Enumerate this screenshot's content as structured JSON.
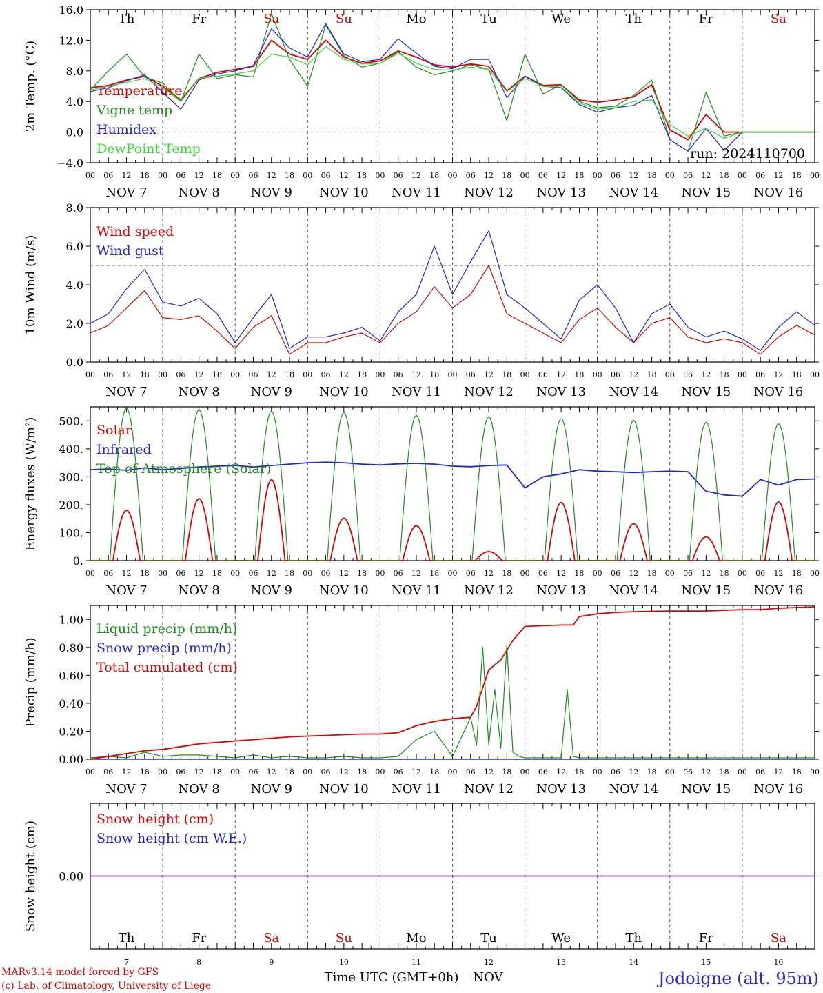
{
  "meta": {
    "run": "run: 2024110700",
    "footer_model": "MARv3.14 model forced by GFS",
    "footer_lab": "(c) Lab. of Climatology, University of Liege",
    "footer_axis": "Time UTC (GMT+0h)",
    "footer_month": "NOV",
    "location": "Jodoigne (alt. 95m)"
  },
  "timeline": {
    "days": [
      "7",
      "8",
      "9",
      "10",
      "11",
      "12",
      "13",
      "14",
      "15",
      "16"
    ],
    "month": "NOV",
    "weekdays": [
      "Th",
      "Fr",
      "Sa",
      "Su",
      "Mo",
      "Tu",
      "We",
      "Th",
      "Fr",
      "Sa"
    ],
    "weekend_flags": [
      false,
      false,
      true,
      true,
      false,
      false,
      false,
      false,
      false,
      true
    ],
    "hour_ticks": [
      "00",
      "06",
      "12",
      "18"
    ],
    "end_tick": "00"
  },
  "colors": {
    "red": "#e00000",
    "green": "#1f8a1f",
    "lightgreen": "#33dd33",
    "blue": "#2222dd",
    "purple": "#7a3aa0",
    "black": "#000000"
  },
  "chart_data": [
    {
      "type": "line",
      "ylabel": "2m Temp. (°C)",
      "ylim": [
        -4,
        16
      ],
      "yticks": [
        "16.0",
        "12.0",
        "8.0",
        "4.0",
        "0.0",
        "−4.0"
      ],
      "yticks_values": [
        16,
        12,
        8,
        4,
        0,
        -4
      ],
      "ref_lines": [
        0
      ],
      "x_units": "hours since NOV 7 00 UTC",
      "x_range": [
        0,
        240
      ],
      "series": [
        {
          "name": "Temperature",
          "color_key": "red",
          "x": [
            0,
            6,
            12,
            18,
            24,
            30,
            36,
            42,
            48,
            54,
            60,
            66,
            72,
            78,
            84,
            90,
            96,
            102,
            108,
            114,
            120,
            126,
            132,
            138,
            144,
            150,
            156,
            162,
            168,
            174,
            180,
            186,
            192,
            198,
            204,
            210,
            216,
            222,
            228,
            234,
            240
          ],
          "y": [
            5.8,
            6.1,
            6.8,
            7.3,
            6.0,
            4.2,
            7.0,
            7.8,
            8.2,
            8.6,
            12.0,
            10.2,
            9.5,
            12.0,
            9.8,
            9.0,
            9.3,
            10.6,
            9.8,
            8.8,
            8.5,
            8.9,
            8.6,
            5.4,
            7.3,
            6.1,
            6.2,
            4.2,
            3.9,
            4.2,
            4.6,
            6.2,
            0.3,
            -1.0,
            2.3,
            0.0,
            0,
            0,
            0,
            0,
            0
          ]
        },
        {
          "name": "Vigne temp",
          "color_key": "green",
          "x": [
            0,
            6,
            12,
            18,
            24,
            30,
            36,
            42,
            48,
            54,
            60,
            66,
            72,
            78,
            84,
            90,
            96,
            102,
            108,
            114,
            120,
            126,
            132,
            138,
            144,
            150,
            156,
            162,
            168,
            174,
            180,
            186,
            192,
            198,
            204,
            210,
            216,
            222,
            228,
            234,
            240
          ],
          "y": [
            5.5,
            8.0,
            10.2,
            7.2,
            6.4,
            4.0,
            10.2,
            7.0,
            7.5,
            7.2,
            15.5,
            9.5,
            6.0,
            14.0,
            10.0,
            8.5,
            9.0,
            10.5,
            8.5,
            7.5,
            8.0,
            8.8,
            8.2,
            1.5,
            10.2,
            5.0,
            6.2,
            4.0,
            3.2,
            3.4,
            4.8,
            6.8,
            -1.0,
            -2.5,
            5.2,
            -0.5,
            0,
            0,
            0,
            0,
            0
          ]
        },
        {
          "name": "Humidex",
          "color_key": "blue",
          "x": [
            0,
            6,
            12,
            18,
            24,
            30,
            36,
            42,
            48,
            54,
            60,
            66,
            72,
            78,
            84,
            90,
            96,
            102,
            108,
            114,
            120,
            126,
            132,
            138,
            144,
            150,
            156,
            162,
            168,
            174,
            180,
            186,
            192,
            198,
            204,
            210,
            216,
            222,
            228,
            234,
            240
          ],
          "y": [
            5.3,
            5.8,
            6.7,
            7.5,
            5.2,
            3.0,
            6.8,
            7.6,
            8.0,
            8.7,
            13.5,
            11.0,
            9.8,
            14.2,
            10.2,
            9.2,
            9.5,
            12.2,
            10.3,
            8.6,
            8.3,
            9.5,
            9.5,
            4.5,
            7.3,
            6.0,
            5.8,
            3.6,
            2.6,
            3.2,
            3.5,
            4.8,
            -1.0,
            -2.5,
            0.5,
            -2.4,
            0,
            0,
            0,
            0,
            0
          ]
        },
        {
          "name": "DewPoint Temp",
          "color_key": "lightgreen",
          "x": [
            0,
            6,
            12,
            18,
            24,
            30,
            36,
            42,
            48,
            54,
            60,
            66,
            72,
            78,
            84,
            90,
            96,
            102,
            108,
            114,
            120,
            126,
            132,
            138,
            144,
            150,
            156,
            162,
            168,
            174,
            180,
            186,
            192,
            198,
            204,
            210,
            216,
            222,
            228,
            234,
            240
          ],
          "y": [
            5.5,
            6.0,
            6.5,
            7.0,
            5.8,
            4.0,
            7.0,
            7.3,
            7.6,
            8.0,
            10.2,
            9.8,
            8.8,
            11.2,
            9.5,
            8.9,
            9.0,
            10.3,
            9.0,
            8.2,
            8.1,
            8.5,
            8.2,
            5.3,
            7.0,
            6.0,
            5.9,
            3.8,
            3.0,
            3.2,
            4.0,
            4.2,
            1.0,
            -0.5,
            0.5,
            -0.8,
            0,
            0,
            0,
            0,
            0
          ]
        }
      ]
    },
    {
      "type": "line",
      "ylabel": "10m Wind (m/s)",
      "ylim": [
        0,
        8
      ],
      "yticks": [
        "8.0",
        "6.0",
        "4.0",
        "2.0",
        "0.0"
      ],
      "yticks_values": [
        8,
        6,
        4,
        2,
        0
      ],
      "ref_lines": [
        5
      ],
      "x_units": "hours since NOV 7 00 UTC",
      "x_range": [
        0,
        240
      ],
      "series": [
        {
          "name": "Wind speed",
          "color_key": "red",
          "x": [
            0,
            6,
            12,
            18,
            24,
            30,
            36,
            42,
            48,
            54,
            60,
            66,
            72,
            78,
            84,
            90,
            96,
            102,
            108,
            114,
            120,
            126,
            132,
            138,
            144,
            150,
            156,
            162,
            168,
            174,
            180,
            186,
            192,
            198,
            204,
            210,
            216,
            222,
            228,
            234,
            240
          ],
          "y": [
            1.5,
            1.9,
            2.8,
            3.7,
            2.3,
            2.2,
            2.4,
            1.6,
            0.7,
            1.8,
            2.4,
            0.4,
            1.0,
            1.0,
            1.3,
            1.5,
            1.0,
            2.0,
            2.6,
            3.9,
            2.8,
            3.5,
            5.0,
            2.5,
            2.0,
            1.5,
            1.0,
            2.2,
            2.8,
            1.8,
            1.0,
            2.0,
            2.3,
            1.3,
            1.0,
            1.2,
            1.0,
            0.4,
            1.3,
            1.9,
            1.4
          ]
        },
        {
          "name": "Wind gust",
          "color_key": "blue",
          "x": [
            0,
            6,
            12,
            18,
            24,
            30,
            36,
            42,
            48,
            54,
            60,
            66,
            72,
            78,
            84,
            90,
            96,
            102,
            108,
            114,
            120,
            126,
            132,
            138,
            144,
            150,
            156,
            162,
            168,
            174,
            180,
            186,
            192,
            198,
            204,
            210,
            216,
            222,
            228,
            234,
            240
          ],
          "y": [
            2.0,
            2.5,
            3.8,
            4.8,
            3.1,
            2.9,
            3.3,
            2.5,
            1.0,
            2.3,
            3.5,
            0.7,
            1.3,
            1.3,
            1.5,
            1.8,
            1.1,
            2.6,
            3.5,
            6.0,
            3.5,
            5.2,
            6.8,
            3.5,
            2.8,
            2.0,
            1.2,
            3.2,
            4.0,
            2.8,
            1.0,
            2.5,
            3.0,
            1.8,
            1.3,
            1.6,
            1.2,
            0.6,
            1.8,
            2.6,
            1.9
          ]
        }
      ]
    },
    {
      "type": "line",
      "ylabel": "Energy fluxes (W/m²)",
      "ylim": [
        0,
        550
      ],
      "yticks": [
        "500.",
        "400.",
        "300.",
        "200.",
        "100.",
        "0."
      ],
      "yticks_values": [
        500,
        400,
        300,
        200,
        100,
        0
      ],
      "ref_lines": [],
      "x_units": "hours since NOV 7 00 UTC",
      "x_range": [
        0,
        240
      ],
      "series": [
        {
          "name": "Solar",
          "color_key": "red",
          "day_peaks": [
            180,
            222,
            290,
            152,
            125,
            32,
            208,
            132,
            85,
            210
          ]
        },
        {
          "name": "Infrared",
          "color_key": "blue",
          "x": [
            0,
            6,
            12,
            18,
            24,
            30,
            36,
            42,
            48,
            54,
            60,
            66,
            72,
            78,
            84,
            90,
            96,
            102,
            108,
            114,
            120,
            126,
            132,
            138,
            144,
            150,
            156,
            162,
            168,
            174,
            180,
            186,
            192,
            198,
            204,
            210,
            216,
            222,
            228,
            234,
            240
          ],
          "y": [
            325,
            328,
            323,
            332,
            325,
            330,
            335,
            338,
            340,
            335,
            340,
            345,
            350,
            352,
            350,
            345,
            342,
            346,
            348,
            345,
            338,
            336,
            340,
            342,
            260,
            300,
            310,
            325,
            320,
            318,
            315,
            318,
            320,
            318,
            248,
            235,
            230,
            290,
            270,
            290,
            292
          ]
        },
        {
          "name": "Top of Atmosphere (Solar)",
          "color_key": "green",
          "day_peaks": [
            545,
            540,
            535,
            530,
            520,
            515,
            508,
            502,
            495,
            490
          ]
        }
      ]
    },
    {
      "type": "line",
      "ylabel": "Precip (mm/h)",
      "ylim": [
        0,
        1.1
      ],
      "yticks": [
        "1.00",
        "0.80",
        "0.60",
        "0.40",
        "0.20",
        "0.00"
      ],
      "yticks_values": [
        1.0,
        0.8,
        0.6,
        0.4,
        0.2,
        0.0
      ],
      "ref_lines": [],
      "x_units": "hours since NOV 7 00 UTC",
      "x_range": [
        0,
        240
      ],
      "series": [
        {
          "name": "Liquid precip (mm/h)",
          "color_key": "green",
          "x": [
            0,
            6,
            12,
            18,
            24,
            30,
            36,
            42,
            48,
            54,
            60,
            66,
            72,
            78,
            84,
            90,
            96,
            102,
            108,
            114,
            120,
            126,
            128,
            130,
            132,
            134,
            136,
            138,
            140,
            142,
            144,
            150,
            156,
            158,
            160,
            162,
            168,
            174,
            180,
            186,
            192,
            198,
            204,
            210,
            216,
            222,
            228,
            234,
            240
          ],
          "y": [
            0.01,
            0.02,
            0.01,
            0.05,
            0.02,
            0.03,
            0.03,
            0.02,
            0.01,
            0.03,
            0.01,
            0.02,
            0.01,
            0.01,
            0.02,
            0.01,
            0.01,
            0.02,
            0.14,
            0.2,
            0.02,
            0.3,
            0.1,
            0.8,
            0.1,
            0.5,
            0.08,
            0.82,
            0.05,
            0.02,
            0.01,
            0.01,
            0.01,
            0.5,
            0.02,
            0.01,
            0.01,
            0.01,
            0.01,
            0.01,
            0.01,
            0.01,
            0.01,
            0.01,
            0.01,
            0.01,
            0.01,
            0.01,
            0.01
          ]
        },
        {
          "name": "Snow precip (mm/h)",
          "color_key": "blue",
          "x": [
            0,
            240
          ],
          "y": [
            0,
            0
          ]
        },
        {
          "name": "Total cumulated (cm)",
          "color_key": "red",
          "x": [
            0,
            6,
            12,
            18,
            24,
            30,
            36,
            42,
            48,
            54,
            60,
            66,
            72,
            78,
            84,
            90,
            96,
            102,
            108,
            114,
            120,
            126,
            128,
            132,
            136,
            140,
            144,
            150,
            156,
            160,
            162,
            168,
            174,
            180,
            186,
            192,
            198,
            204,
            210,
            216,
            222,
            228,
            234,
            240
          ],
          "y": [
            0.0,
            0.02,
            0.04,
            0.06,
            0.07,
            0.09,
            0.11,
            0.12,
            0.13,
            0.14,
            0.15,
            0.16,
            0.165,
            0.17,
            0.175,
            0.18,
            0.18,
            0.19,
            0.24,
            0.27,
            0.29,
            0.3,
            0.38,
            0.64,
            0.71,
            0.85,
            0.95,
            0.955,
            0.96,
            0.96,
            1.02,
            1.04,
            1.05,
            1.055,
            1.058,
            1.06,
            1.06,
            1.06,
            1.065,
            1.07,
            1.07,
            1.08,
            1.085,
            1.09
          ]
        }
      ]
    },
    {
      "type": "line",
      "ylabel": "Snow height (cm)",
      "ylim": [
        -1,
        1
      ],
      "yticks": [
        "0.00"
      ],
      "yticks_values": [
        0
      ],
      "ref_lines": [],
      "x_units": "hours since NOV 7 00 UTC",
      "x_range": [
        0,
        240
      ],
      "series": [
        {
          "name": "Snow height (cm)",
          "color_key": "red",
          "x": [
            0,
            240
          ],
          "y": [
            0,
            0
          ]
        },
        {
          "name": "Snow height (cm W.E.)",
          "color_key": "blue",
          "x": [
            0,
            240
          ],
          "y": [
            0,
            0
          ]
        }
      ]
    }
  ]
}
